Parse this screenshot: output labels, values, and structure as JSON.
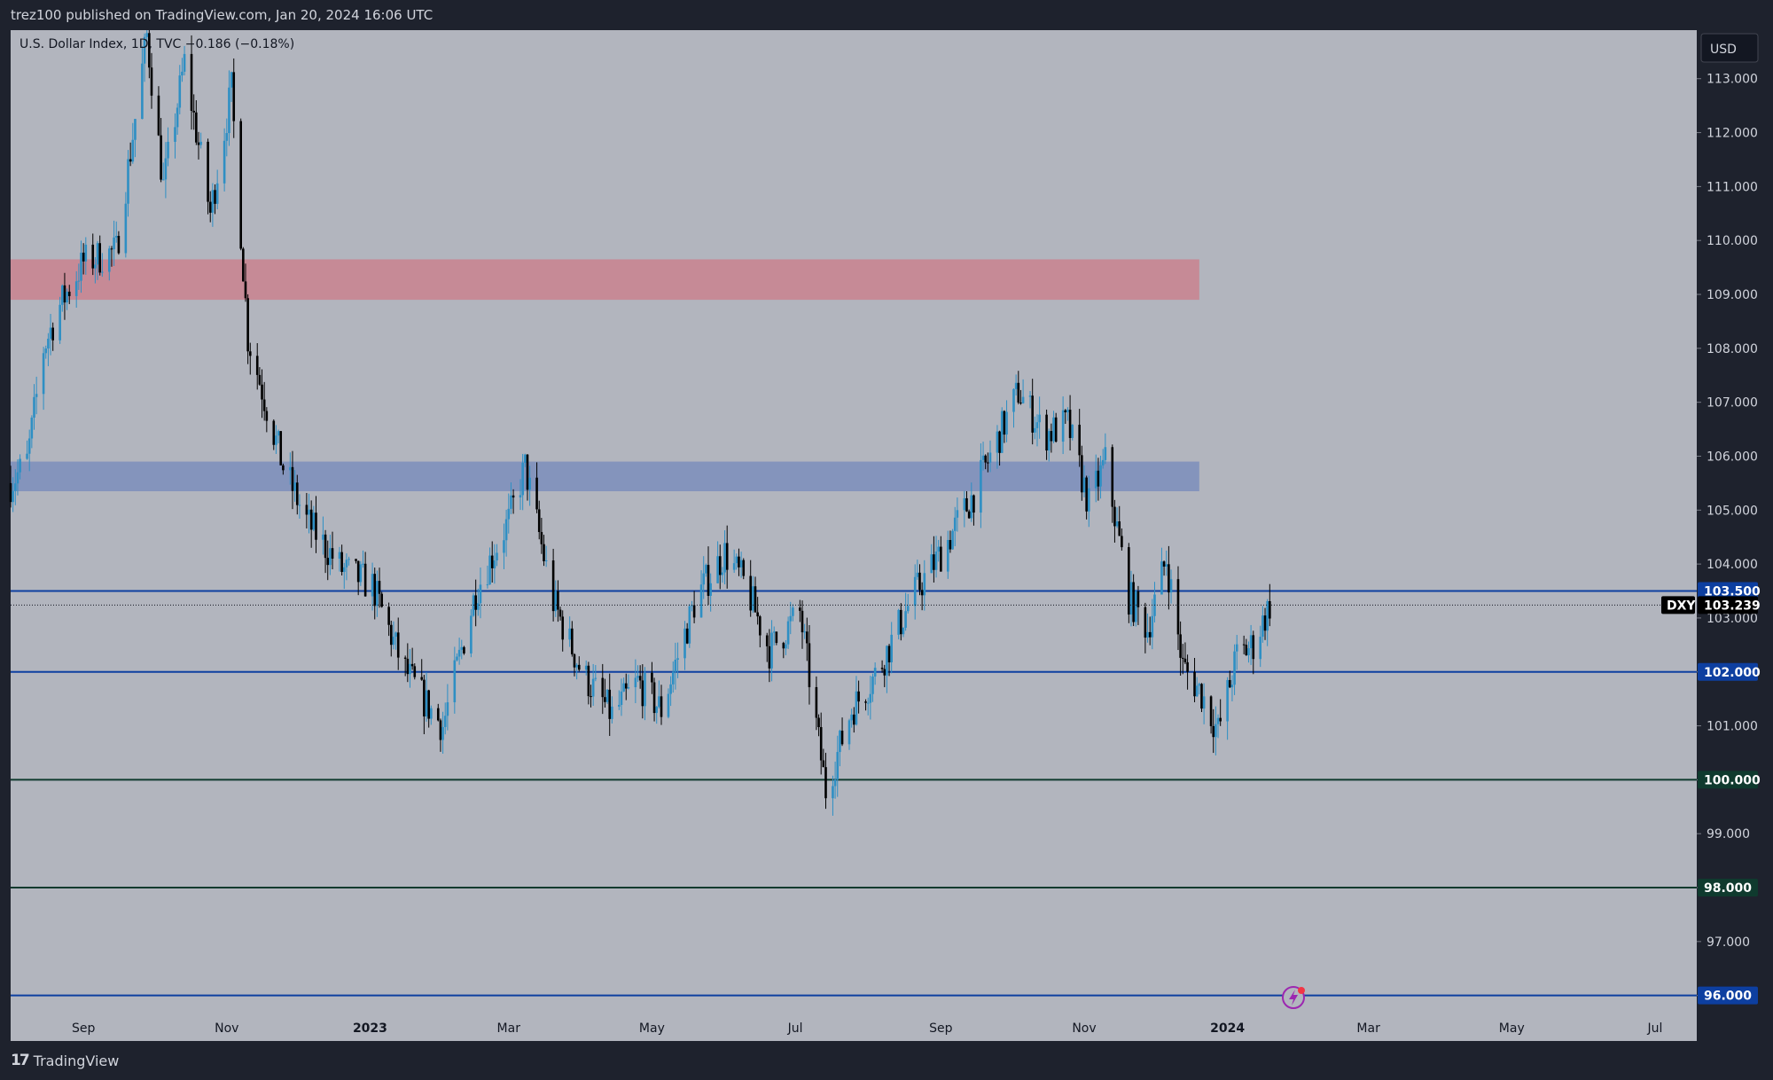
{
  "header": {
    "text": "trez100 published on TradingView.com, Jan 20, 2024 16:06 UTC"
  },
  "legend": {
    "text": "U.S. Dollar Index, 1D, TVC  −0.186 (−0.18%)"
  },
  "currency_badge": "USD",
  "footer": {
    "brand": "TradingView"
  },
  "colors": {
    "plot_bg": "#b2b5be",
    "up": "#2e8fc4",
    "down": "#000000",
    "resistance_zone": "#c68a96",
    "support_zone": "#8494bc",
    "blue_line": "#0d3fa0",
    "green_line": "#0f3a2e"
  },
  "chart_data": {
    "type": "candlestick",
    "symbol": "DXY",
    "title": "U.S. Dollar Index, 1D, TVC",
    "change": "−0.186 (−0.18%)",
    "last_price": 103.239,
    "x_ticks": [
      "Sep",
      "Nov",
      "2023",
      "Mar",
      "May",
      "Jul",
      "Sep",
      "Nov",
      "2024",
      "Mar",
      "May",
      "Jul"
    ],
    "y_ticks": [
      "96.000",
      "97.000",
      "98.000",
      "99.000",
      "100.000",
      "101.000",
      "102.000",
      "103.000",
      "104.000",
      "105.000",
      "106.000",
      "107.000",
      "108.000",
      "109.000",
      "110.000",
      "111.000",
      "112.000",
      "113.000"
    ],
    "ylim": [
      95.6,
      113.9
    ],
    "zones": [
      {
        "name": "resistance",
        "from": 108.9,
        "to": 109.65,
        "color": "#c68a96"
      },
      {
        "name": "support",
        "from": 105.35,
        "to": 105.9,
        "color": "#8494bc"
      }
    ],
    "levels": [
      {
        "price": 103.5,
        "label": "103.500",
        "color": "#0d3fa0"
      },
      {
        "price": 102.0,
        "label": "102.000",
        "color": "#0d3fa0"
      },
      {
        "price": 100.0,
        "label": "100.000",
        "color": "#0f3a2e"
      },
      {
        "price": 98.0,
        "label": "98.000",
        "color": "#0f3a2e"
      },
      {
        "price": 96.0,
        "label": "96.000",
        "color": "#0d3fa0"
      }
    ],
    "last_price_label": "103.239",
    "symbol_label": "DXY",
    "close_series": [
      [
        "2022-08-01",
        105.5
      ],
      [
        "2022-08-08",
        105.9
      ],
      [
        "2022-08-15",
        108.0
      ],
      [
        "2022-08-22",
        108.8
      ],
      [
        "2022-09-01",
        109.6
      ],
      [
        "2022-09-15",
        109.8
      ],
      [
        "2022-09-28",
        113.8
      ],
      [
        "2022-10-05",
        111.0
      ],
      [
        "2022-10-14",
        113.3
      ],
      [
        "2022-10-25",
        110.5
      ],
      [
        "2022-11-03",
        112.8
      ],
      [
        "2022-11-10",
        108.2
      ],
      [
        "2022-11-25",
        105.8
      ],
      [
        "2022-12-05",
        104.8
      ],
      [
        "2022-12-20",
        103.9
      ],
      [
        "2023-01-02",
        103.6
      ],
      [
        "2023-01-15",
        102.1
      ],
      [
        "2023-01-25",
        101.4
      ],
      [
        "2023-02-01",
        101.0
      ],
      [
        "2023-02-15",
        103.5
      ],
      [
        "2023-03-01",
        104.8
      ],
      [
        "2023-03-08",
        105.8
      ],
      [
        "2023-03-20",
        103.3
      ],
      [
        "2023-04-01",
        102.0
      ],
      [
        "2023-04-14",
        101.2
      ],
      [
        "2023-04-25",
        101.8
      ],
      [
        "2023-05-05",
        101.3
      ],
      [
        "2023-05-20",
        103.4
      ],
      [
        "2023-06-01",
        104.2
      ],
      [
        "2023-06-10",
        103.6
      ],
      [
        "2023-06-20",
        102.4
      ],
      [
        "2023-07-03",
        103.1
      ],
      [
        "2023-07-14",
        99.8
      ],
      [
        "2023-07-25",
        101.3
      ],
      [
        "2023-08-05",
        102.0
      ],
      [
        "2023-08-20",
        103.4
      ],
      [
        "2023-09-01",
        104.2
      ],
      [
        "2023-09-15",
        105.3
      ],
      [
        "2023-09-28",
        106.6
      ],
      [
        "2023-10-04",
        107.2
      ],
      [
        "2023-10-15",
        106.4
      ],
      [
        "2023-10-25",
        106.6
      ],
      [
        "2023-11-03",
        105.1
      ],
      [
        "2023-11-10",
        105.9
      ],
      [
        "2023-11-20",
        103.4
      ],
      [
        "2023-11-28",
        102.8
      ],
      [
        "2023-12-06",
        104.1
      ],
      [
        "2023-12-13",
        102.1
      ],
      [
        "2023-12-21",
        101.6
      ],
      [
        "2023-12-28",
        100.9
      ],
      [
        "2024-01-05",
        102.3
      ],
      [
        "2024-01-12",
        102.5
      ],
      [
        "2024-01-19",
        103.239
      ]
    ]
  }
}
